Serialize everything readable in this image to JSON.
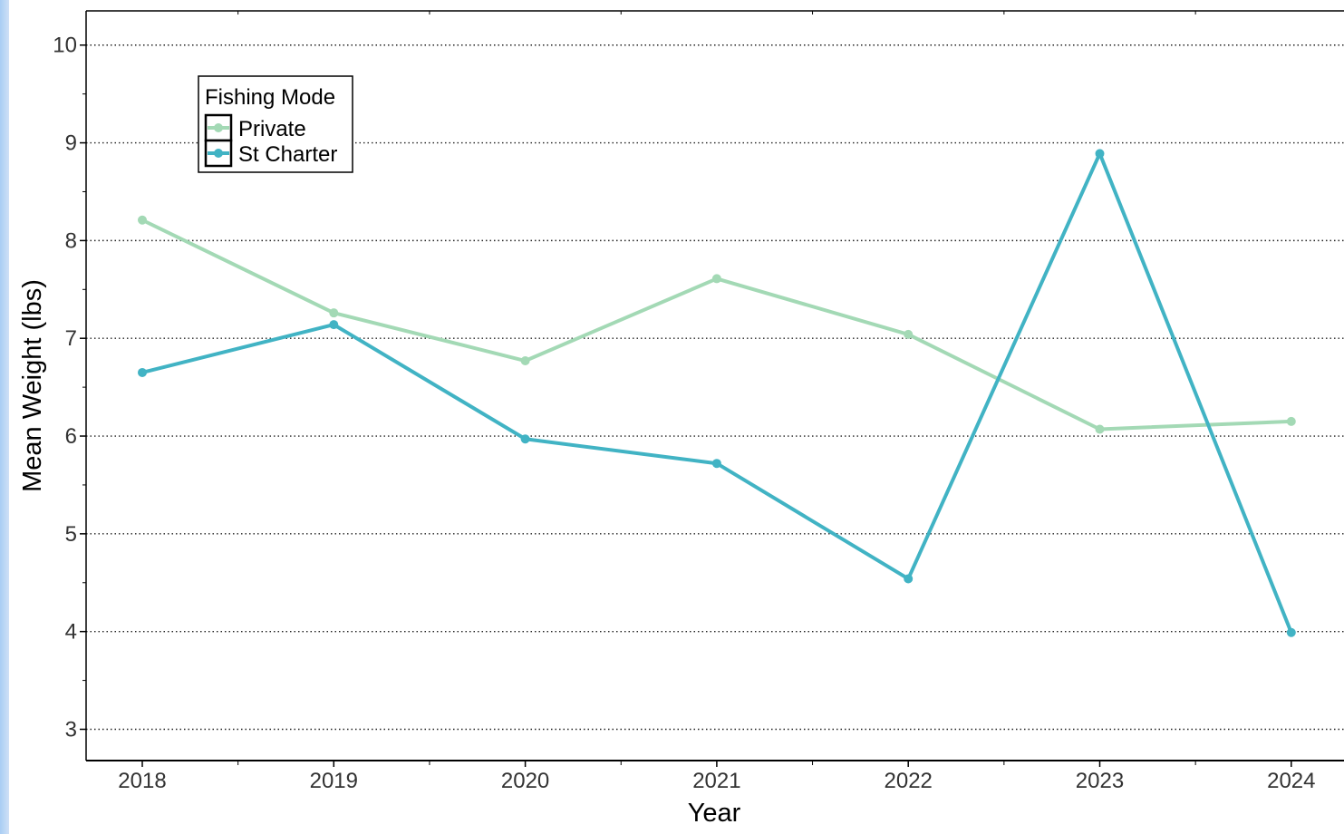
{
  "chart_data": {
    "type": "line",
    "title": "",
    "xlabel": "Year",
    "ylabel": "Mean Weight (lbs)",
    "categories": [
      "2018",
      "2019",
      "2020",
      "2021",
      "2022",
      "2023",
      "2024"
    ],
    "yticks": [
      "3",
      "4",
      "5",
      "6",
      "7",
      "8",
      "9",
      "10"
    ],
    "ylim": [
      2.68,
      10.35
    ],
    "grid": "horizontal dotted",
    "legend": {
      "title": "Fishing Mode",
      "placement": "top-left"
    },
    "series": [
      {
        "name": "Private",
        "color": "#a3d9b5",
        "values": [
          8.21,
          7.26,
          6.77,
          7.61,
          7.04,
          6.07,
          6.15
        ]
      },
      {
        "name": "St Charter",
        "color": "#41b3c4",
        "values": [
          6.65,
          7.14,
          5.97,
          5.72,
          4.54,
          8.89,
          3.99
        ]
      }
    ]
  }
}
